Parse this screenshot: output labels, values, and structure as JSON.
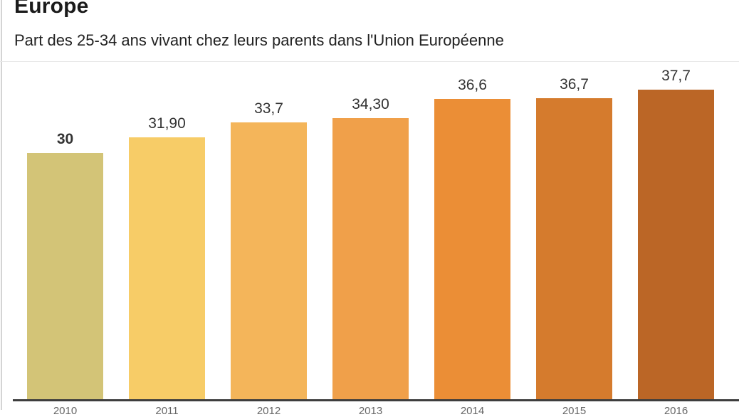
{
  "header": {
    "title": "Europe",
    "subtitle": "Part des 25-34 ans vivant chez leurs parents dans l'Union Européenne"
  },
  "chart_data": {
    "type": "bar",
    "title": "Europe",
    "subtitle": "Part des 25-34 ans vivant chez leurs parents dans l'Union Européenne",
    "categories": [
      "2010",
      "2011",
      "2012",
      "2013",
      "2014",
      "2015",
      "2016"
    ],
    "values": [
      30,
      31.9,
      33.7,
      34.3,
      36.6,
      36.7,
      37.7
    ],
    "value_labels": [
      "30",
      "31,90",
      "33,7",
      "34,30",
      "36,6",
      "36,7",
      "37,7"
    ],
    "bar_colors": [
      "#d3c477",
      "#f7cc67",
      "#f4b55a",
      "#f0a04a",
      "#eb8e36",
      "#d57b2d",
      "#bb6626"
    ],
    "emphasized_index": 0,
    "xlabel": "",
    "ylabel": "",
    "ylim": [
      0,
      40
    ],
    "grid": false,
    "legend": "none",
    "axis_line_color": "#3d3d3d",
    "value_label_color": "#333333"
  }
}
